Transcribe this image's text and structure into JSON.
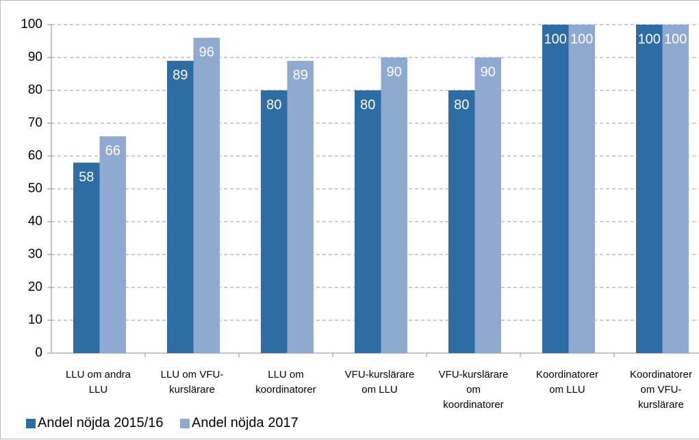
{
  "chart_data": {
    "type": "bar",
    "categories": [
      "LLU om andra\nLLU",
      "LLU om VFU-\nkurslärare",
      "LLU om\nkoordinatorer",
      "VFU-kurslärare\nom LLU",
      "VFU-kurslärare\nom\nkoordinatorer",
      "Koordinatorer\nom LLU",
      "Koordinatorer\nom VFU-\nkurslärare"
    ],
    "series": [
      {
        "name": "Andel nöjda 2015/16",
        "color": "#2e6ca4",
        "values": [
          58,
          89,
          80,
          80,
          80,
          100,
          100
        ]
      },
      {
        "name": "Andel nöjda 2017",
        "color": "#8fa9d1",
        "values": [
          66,
          96,
          89,
          90,
          90,
          100,
          100
        ]
      }
    ],
    "ylim": [
      0,
      100
    ],
    "yticks": [
      0,
      10,
      20,
      30,
      40,
      50,
      60,
      70,
      80,
      90,
      100
    ],
    "grid": true,
    "legend": "bottom-left"
  }
}
